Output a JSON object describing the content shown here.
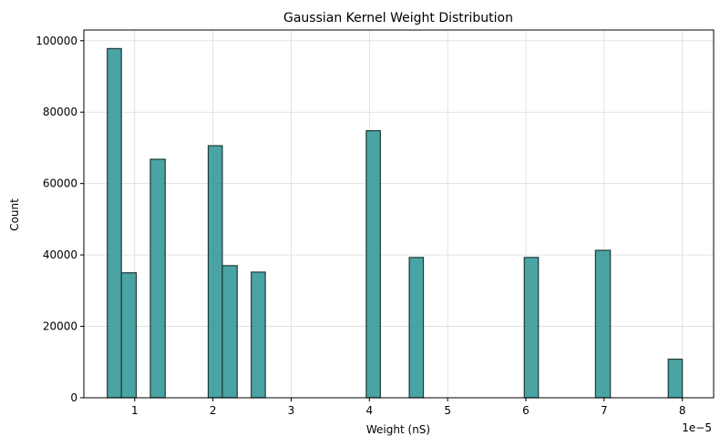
{
  "chart_data": {
    "type": "bar",
    "title": "Gaussian Kernel Weight Distribution",
    "xlabel": "Weight (nS)",
    "ylabel": "Count",
    "x_offset_label": "1e−5",
    "xlim": [
      0.35,
      8.4
    ],
    "ylim": [
      0,
      103000
    ],
    "x_ticks": [
      1,
      2,
      3,
      4,
      5,
      6,
      7,
      8
    ],
    "y_ticks": [
      0,
      20000,
      40000,
      60000,
      80000,
      100000
    ],
    "grid": true,
    "bar_color": "#2a9493",
    "edge_color": "#1f3a3a",
    "bins": [
      {
        "x0": 0.65,
        "x1": 0.83,
        "value": 97800
      },
      {
        "x0": 0.83,
        "x1": 1.02,
        "value": 35000
      },
      {
        "x0": 1.2,
        "x1": 1.39,
        "value": 66800
      },
      {
        "x0": 1.94,
        "x1": 2.12,
        "value": 70600
      },
      {
        "x0": 2.12,
        "x1": 2.31,
        "value": 37000
      },
      {
        "x0": 2.49,
        "x1": 2.67,
        "value": 35200
      },
      {
        "x0": 3.96,
        "x1": 4.14,
        "value": 74800
      },
      {
        "x0": 4.51,
        "x1": 4.69,
        "value": 39300
      },
      {
        "x0": 5.98,
        "x1": 6.16,
        "value": 39300
      },
      {
        "x0": 6.89,
        "x1": 7.08,
        "value": 41300
      },
      {
        "x0": 7.82,
        "x1": 8.0,
        "value": 10800
      }
    ]
  }
}
